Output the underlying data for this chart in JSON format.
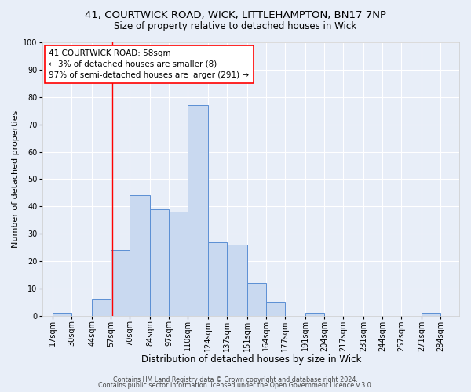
{
  "title1": "41, COURTWICK ROAD, WICK, LITTLEHAMPTON, BN17 7NP",
  "title2": "Size of property relative to detached houses in Wick",
  "xlabel": "Distribution of detached houses by size in Wick",
  "ylabel": "Number of detached properties",
  "bar_left_edges": [
    17,
    30,
    44,
    57,
    70,
    84,
    97,
    110,
    124,
    137,
    151,
    164,
    177,
    191,
    204,
    217,
    231,
    244,
    257,
    271
  ],
  "bar_heights": [
    1,
    0,
    6,
    24,
    44,
    39,
    38,
    77,
    27,
    26,
    12,
    5,
    0,
    1,
    0,
    0,
    0,
    0,
    0,
    1
  ],
  "bar_widths": [
    13,
    14,
    13,
    13,
    14,
    13,
    13,
    14,
    13,
    14,
    13,
    13,
    14,
    13,
    13,
    14,
    13,
    13,
    14,
    13
  ],
  "bar_color": "#c9d9f0",
  "bar_edgecolor": "#5b8fd4",
  "xlim_left": 10,
  "xlim_right": 297,
  "ylim_top": 100,
  "yticks": [
    0,
    10,
    20,
    30,
    40,
    50,
    60,
    70,
    80,
    90,
    100
  ],
  "xtick_labels": [
    "17sqm",
    "30sqm",
    "44sqm",
    "57sqm",
    "70sqm",
    "84sqm",
    "97sqm",
    "110sqm",
    "124sqm",
    "137sqm",
    "151sqm",
    "164sqm",
    "177sqm",
    "191sqm",
    "204sqm",
    "217sqm",
    "231sqm",
    "244sqm",
    "257sqm",
    "271sqm",
    "284sqm"
  ],
  "xtick_positions": [
    17,
    30,
    44,
    57,
    70,
    84,
    97,
    110,
    124,
    137,
    151,
    164,
    177,
    191,
    204,
    217,
    231,
    244,
    257,
    271,
    284
  ],
  "red_line_x": 58,
  "annotation_title": "41 COURTWICK ROAD: 58sqm",
  "annotation_line1": "← 3% of detached houses are smaller (8)",
  "annotation_line2": "97% of semi-detached houses are larger (291) →",
  "footer1": "Contains HM Land Registry data © Crown copyright and database right 2024.",
  "footer2": "Contains public sector information licensed under the Open Government Licence v.3.0.",
  "bg_color": "#e8eef8",
  "plot_bg_color": "#e8eef8",
  "grid_color": "#ffffff",
  "title1_fontsize": 9.5,
  "title2_fontsize": 8.5,
  "xlabel_fontsize": 8.5,
  "ylabel_fontsize": 8,
  "tick_fontsize": 7,
  "annotation_fontsize": 7.5,
  "footer_fontsize": 5.8
}
